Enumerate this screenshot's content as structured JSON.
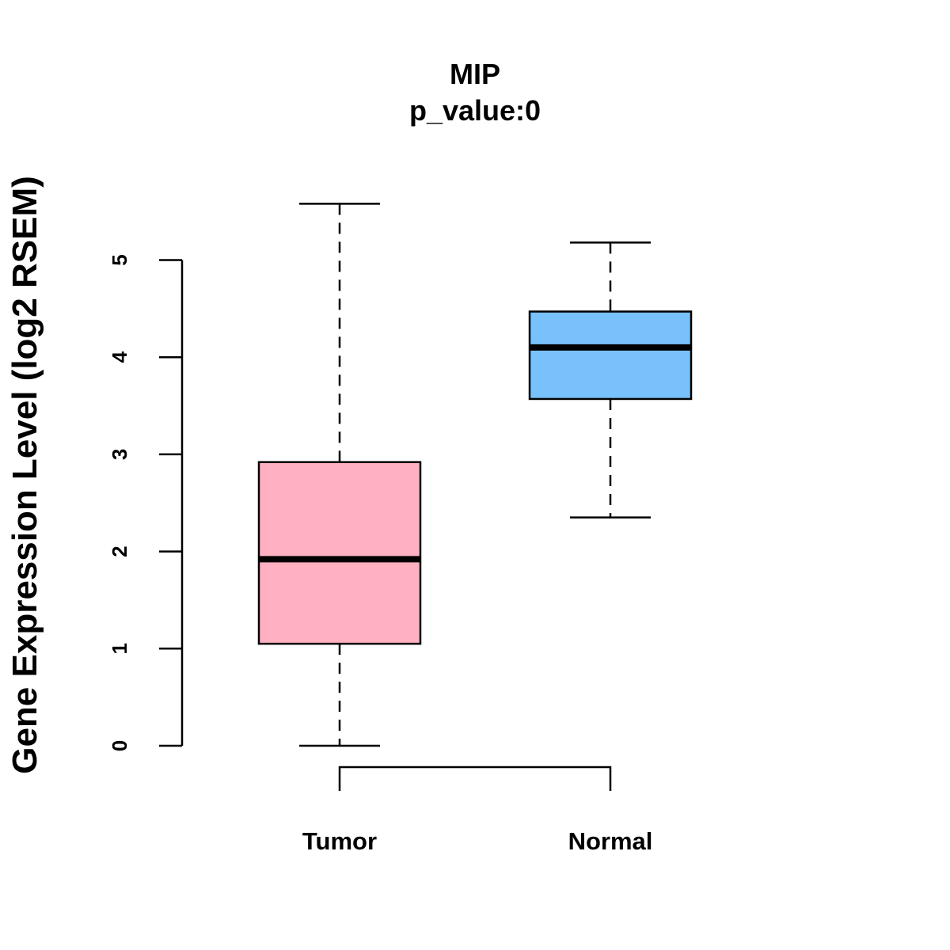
{
  "chart_data": {
    "type": "boxplot",
    "title": "MIP",
    "subtitle": "p_value:0",
    "xlabel": "",
    "ylabel": "Gene Expression Level (log2 RSEM)",
    "ylim": [
      0,
      5
    ],
    "yticks": [
      0,
      1,
      2,
      3,
      4,
      5
    ],
    "categories": [
      "Tumor",
      "Normal"
    ],
    "series": [
      {
        "name": "Tumor",
        "whisker_low": 0.0,
        "q1": 1.05,
        "median": 1.92,
        "q3": 2.92,
        "whisker_high": 5.58,
        "color": "#FFB0C1"
      },
      {
        "name": "Normal",
        "whisker_low": 2.35,
        "q1": 3.57,
        "median": 4.1,
        "q3": 4.47,
        "whisker_high": 5.18,
        "color": "#78C1FA"
      }
    ],
    "grid": false,
    "legend": "none",
    "comparison_bracket": [
      "Tumor",
      "Normal"
    ]
  }
}
